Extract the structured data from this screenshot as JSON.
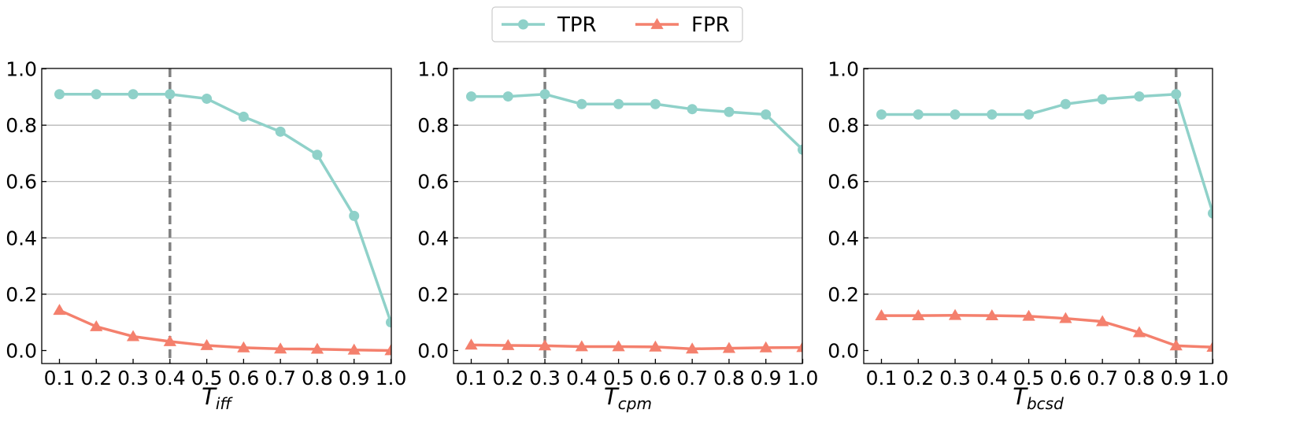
{
  "legend": {
    "placement": "top-center",
    "entries": [
      {
        "label": "TPR",
        "color": "#8fd1c9",
        "marker": "circle"
      },
      {
        "label": "FPR",
        "color": "#f4806d",
        "marker": "triangle"
      }
    ]
  },
  "chart_data": [
    {
      "type": "line",
      "x": [
        0.1,
        0.2,
        0.3,
        0.4,
        0.5,
        0.6,
        0.7,
        0.8,
        0.9,
        1.0
      ],
      "x_ticks": [
        "0.1",
        "0.2",
        "0.3",
        "0.4",
        "0.5",
        "0.6",
        "0.7",
        "0.8",
        "0.9",
        "1.0"
      ],
      "xlabel": {
        "base": "T",
        "sub": "iff"
      },
      "ylabel": "",
      "ylim": [
        0,
        1
      ],
      "y_ticks": [
        "0.0",
        "0.2",
        "0.4",
        "0.6",
        "0.8",
        "1.0"
      ],
      "grid": "y",
      "threshold": 0.4,
      "series": [
        {
          "name": "TPR",
          "values": [
            0.91,
            0.91,
            0.91,
            0.91,
            0.894,
            0.83,
            0.777,
            0.695,
            0.478,
            0.1
          ]
        },
        {
          "name": "FPR",
          "values": [
            0.143,
            0.085,
            0.05,
            0.032,
            0.018,
            0.01,
            0.006,
            0.005,
            0.002,
            0.0
          ]
        }
      ]
    },
    {
      "type": "line",
      "x": [
        0.1,
        0.2,
        0.3,
        0.4,
        0.5,
        0.6,
        0.7,
        0.8,
        0.9,
        1.0
      ],
      "x_ticks": [
        "0.1",
        "0.2",
        "0.3",
        "0.4",
        "0.5",
        "0.6",
        "0.7",
        "0.8",
        "0.9",
        "1.0"
      ],
      "xlabel": {
        "base": "T",
        "sub": "cpm"
      },
      "ylabel": "",
      "ylim": [
        0,
        1
      ],
      "y_ticks": [
        "0.0",
        "0.2",
        "0.4",
        "0.6",
        "0.8",
        "1.0"
      ],
      "grid": "y",
      "threshold": 0.3,
      "series": [
        {
          "name": "TPR",
          "values": [
            0.902,
            0.902,
            0.91,
            0.875,
            0.875,
            0.875,
            0.857,
            0.847,
            0.838,
            0.713
          ]
        },
        {
          "name": "FPR",
          "values": [
            0.02,
            0.018,
            0.017,
            0.014,
            0.014,
            0.013,
            0.006,
            0.008,
            0.01,
            0.011
          ]
        }
      ]
    },
    {
      "type": "line",
      "x": [
        0.1,
        0.2,
        0.3,
        0.4,
        0.5,
        0.6,
        0.7,
        0.8,
        0.9,
        1.0
      ],
      "x_ticks": [
        "0.1",
        "0.2",
        "0.3",
        "0.4",
        "0.5",
        "0.6",
        "0.7",
        "0.8",
        "0.9",
        "1.0"
      ],
      "xlabel": {
        "base": "T",
        "sub": "bcsd"
      },
      "ylabel": "",
      "ylim": [
        0,
        1
      ],
      "y_ticks": [
        "0.0",
        "0.2",
        "0.4",
        "0.6",
        "0.8",
        "1.0"
      ],
      "grid": "y",
      "threshold": 0.9,
      "series": [
        {
          "name": "TPR",
          "values": [
            0.838,
            0.838,
            0.838,
            0.838,
            0.838,
            0.875,
            0.892,
            0.902,
            0.91,
            0.487
          ]
        },
        {
          "name": "FPR",
          "values": [
            0.124,
            0.124,
            0.125,
            0.124,
            0.122,
            0.114,
            0.103,
            0.064,
            0.017,
            0.012
          ]
        }
      ]
    }
  ]
}
